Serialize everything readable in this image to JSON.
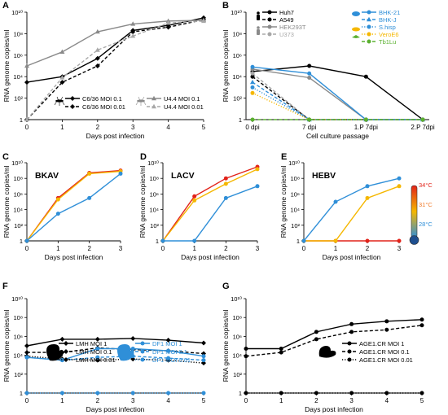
{
  "figure": {
    "panels": [
      "A",
      "B",
      "C",
      "D",
      "E",
      "F",
      "G"
    ],
    "colors": {
      "axis": "#000000",
      "black": "#000000",
      "gray": "#8a8a8a",
      "lightgray": "#a8a8a8",
      "blue": "#2f8fd8",
      "yellow": "#f5b700",
      "orange": "#f07b2a",
      "red": "#e2231a",
      "green": "#5ab030"
    },
    "temperature_scale": [
      "34°C",
      "31°C",
      "28°C"
    ]
  },
  "chart_data": [
    {
      "panel": "A",
      "type": "line",
      "ylabel": "RNA genome copies/ml",
      "xlabel": "Days post infection",
      "x": [
        0,
        1,
        2,
        3,
        4,
        5
      ],
      "xlim": [
        0,
        5
      ],
      "ylim": [
        1,
        10000000000.0
      ],
      "yscale": "log",
      "yticks": [
        "1",
        "10²",
        "10⁴",
        "10⁶",
        "10⁸",
        "10¹⁰"
      ],
      "series": [
        {
          "name": "C6/36 MOI 0.1",
          "color": "black",
          "dash": "solid",
          "marker": "diamond",
          "values": [
            3000,
            10000,
            500000,
            200000000.0,
            600000000.0,
            3000000000.0
          ]
        },
        {
          "name": "C6/36 MOI 0.01",
          "color": "black",
          "dash": "dashed",
          "marker": "diamond",
          "values": [
            1,
            3000,
            100000,
            150000000.0,
            400000000.0,
            2000000000.0
          ]
        },
        {
          "name": "U4.4 MOI 0.1",
          "color": "gray",
          "dash": "solid",
          "marker": "triangle",
          "values": [
            100000.0,
            2000000.0,
            150000000.0,
            800000000.0,
            1500000000.0,
            1800000000.0
          ]
        },
        {
          "name": "U4.4 MOI 0.01",
          "color": "lightgray",
          "dash": "dashed",
          "marker": "triangle",
          "values": [
            1,
            8000,
            3000000.0,
            60000000.0,
            1000000000.0,
            1500000000.0
          ]
        }
      ]
    },
    {
      "panel": "B",
      "type": "line",
      "ylabel": "RNA genome copies/ml",
      "xlabel": "Cell culture passage",
      "categories": [
        "0 dpi",
        "7 dpi",
        "1.P 7dpi",
        "2.P 7dpi"
      ],
      "ylim": [
        1,
        10000000000.0
      ],
      "yscale": "log",
      "yticks": [
        "1",
        "10²",
        "10⁴",
        "10⁶",
        "10⁸",
        "10¹⁰"
      ],
      "series": [
        {
          "name": "Huh7",
          "color": "black",
          "dash": "solid",
          "marker": "circle",
          "values": [
            30000,
            100000,
            10000,
            1
          ]
        },
        {
          "name": "A549",
          "color": "black",
          "dash": "dashed",
          "marker": "circle",
          "values": [
            10000,
            1,
            1,
            1
          ]
        },
        {
          "name": "HEK293T",
          "color": "gray",
          "dash": "solid",
          "marker": "circle",
          "values": [
            50000,
            8000,
            1,
            1
          ]
        },
        {
          "name": "U373",
          "color": "lightgray",
          "dash": "dashed",
          "marker": "circle",
          "values": [
            20000,
            1,
            1,
            1
          ]
        },
        {
          "name": "BHK-21",
          "color": "blue",
          "dash": "solid",
          "marker": "circle",
          "values": [
            80000,
            20000,
            1,
            1
          ]
        },
        {
          "name": "BHK-J",
          "color": "blue",
          "dash": "dashed",
          "marker": "triangle",
          "values": [
            3000,
            1,
            1,
            1
          ]
        },
        {
          "name": "S.hisp",
          "color": "blue",
          "dash": "dotted",
          "marker": "circle",
          "values": [
            1000,
            1,
            1,
            1
          ]
        },
        {
          "name": "VeroE6",
          "color": "yellow",
          "dash": "dotted",
          "marker": "circle",
          "values": [
            300,
            1,
            1,
            1
          ]
        },
        {
          "name": "Tb1Lu",
          "color": "green",
          "dash": "dashed",
          "marker": "circle",
          "values": [
            1,
            1,
            1,
            1
          ]
        }
      ]
    },
    {
      "panel": "C",
      "title": "BKAV",
      "type": "line",
      "ylabel": "RNA genome copies/ml",
      "xlabel": "Days post infection",
      "x": [
        0,
        1,
        2,
        3
      ],
      "ylim": [
        1,
        10000000000.0
      ],
      "yscale": "log",
      "yticks": [
        "1",
        "10²",
        "10⁴",
        "10⁶",
        "10⁸",
        "10¹⁰"
      ],
      "series": [
        {
          "name": "34°C",
          "color": "red",
          "values": [
            1,
            300000.0,
            500000000.0,
            1000000000.0
          ]
        },
        {
          "name": "31°C",
          "color": "yellow",
          "values": [
            1,
            200000.0,
            400000000.0,
            800000000.0
          ]
        },
        {
          "name": "28°C",
          "color": "blue",
          "values": [
            1,
            3000,
            300000.0,
            400000000.0
          ]
        }
      ]
    },
    {
      "panel": "D",
      "title": "LACV",
      "type": "line",
      "ylabel": "RNA genome copies/ml",
      "xlabel": "Days post infection",
      "x": [
        0,
        1,
        2,
        3
      ],
      "ylim": [
        1,
        10000000000.0
      ],
      "yscale": "log",
      "yticks": [
        "1",
        "10²",
        "10⁴",
        "10⁶",
        "10⁸",
        "10¹⁰"
      ],
      "series": [
        {
          "name": "34°C",
          "color": "red",
          "values": [
            1,
            500000.0,
            100000000.0,
            3000000000.0
          ]
        },
        {
          "name": "31°C",
          "color": "yellow",
          "values": [
            1,
            150000.0,
            20000000.0,
            1500000000.0
          ]
        },
        {
          "name": "28°C",
          "color": "blue",
          "values": [
            1,
            1,
            300000.0,
            10000000.0
          ]
        }
      ]
    },
    {
      "panel": "E",
      "title": "HEBV",
      "type": "line",
      "ylabel": "RNA genome copies/ml",
      "xlabel": "Days post infection",
      "x": [
        0,
        1,
        2,
        3
      ],
      "ylim": [
        1,
        10000000000.0
      ],
      "yscale": "log",
      "yticks": [
        "1",
        "10²",
        "10⁴",
        "10⁶",
        "10⁸",
        "10¹⁰"
      ],
      "series": [
        {
          "name": "34°C",
          "color": "red",
          "values": [
            1,
            1,
            1,
            1
          ]
        },
        {
          "name": "31°C",
          "color": "yellow",
          "values": [
            1,
            1,
            300000.0,
            10000000.0
          ]
        },
        {
          "name": "28°C",
          "color": "blue",
          "values": [
            1,
            100000.0,
            10000000.0,
            100000000.0
          ]
        }
      ]
    },
    {
      "panel": "F",
      "type": "line",
      "ylabel": "RNA genome copies/ml",
      "xlabel": "Days post infection",
      "x": [
        0,
        1,
        2,
        3,
        4,
        5
      ],
      "ylim": [
        1,
        10000000000.0
      ],
      "yscale": "log",
      "yticks": [
        "1",
        "10²",
        "10⁴",
        "10⁶",
        "10⁸",
        "10¹⁰"
      ],
      "series": [
        {
          "name": "LMH MOI 1",
          "color": "black",
          "dash": "solid",
          "marker": "diamond",
          "values": [
            100000.0,
            500000.0,
            500000.0,
            600000.0,
            400000.0,
            200000.0
          ]
        },
        {
          "name": "LMH MOI 0.1",
          "color": "black",
          "dash": "dashed",
          "marker": "diamond",
          "values": [
            20000.0,
            20000.0,
            60000.0,
            40000.0,
            30000.0,
            15000.0
          ]
        },
        {
          "name": "LMH MOI 0.01",
          "color": "black",
          "dash": "dotted",
          "marker": "diamond",
          "values": [
            8000,
            4000,
            3000,
            4000,
            3000,
            1500
          ]
        },
        {
          "name": "DF1 MOI 1",
          "color": "blue",
          "dash": "solid",
          "marker": "circle",
          "values": [
            6000,
            3000,
            50000.0,
            50000.0,
            30000.0,
            8000
          ]
        },
        {
          "name": "DF1 MOI 0.1",
          "color": "blue",
          "dash": "dashed",
          "marker": "circle",
          "values": [
            6000,
            3000,
            6000,
            8000,
            5000,
            3000
          ]
        },
        {
          "name": "DF1 MOI 0.01",
          "color": "blue",
          "dash": "dotted",
          "marker": "circle",
          "values": [
            1,
            1,
            1,
            1,
            1,
            1
          ]
        }
      ]
    },
    {
      "panel": "G",
      "type": "line",
      "ylabel": "RNA genome copies/ml",
      "xlabel": "Days post infection",
      "x": [
        0,
        1,
        2,
        3,
        4,
        5
      ],
      "ylim": [
        1,
        10000000000.0
      ],
      "yscale": "log",
      "yticks": [
        "1",
        "10²",
        "10⁴",
        "10⁶",
        "10⁸",
        "10¹⁰"
      ],
      "series": [
        {
          "name": "AGE1.CR MOI 1",
          "color": "black",
          "dash": "solid",
          "marker": "circle",
          "values": [
            50000.0,
            50000.0,
            3000000.0,
            20000000.0,
            40000000.0,
            60000000.0
          ]
        },
        {
          "name": "AGE1.CR MOI 0.1",
          "color": "black",
          "dash": "dashed",
          "marker": "circle",
          "values": [
            8000,
            20000.0,
            500000.0,
            3000000.0,
            5000000.0,
            15000000.0
          ]
        },
        {
          "name": "AGE1.CR MOI 0.01",
          "color": "black",
          "dash": "dotted",
          "marker": "circle",
          "values": [
            1,
            1,
            1,
            1,
            1,
            1
          ]
        }
      ]
    }
  ]
}
